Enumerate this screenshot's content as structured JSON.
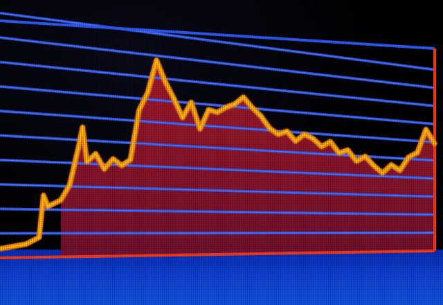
{
  "colors": {
    "grid_line": "#2f5bff",
    "grid_glow": "#5f86ff",
    "price_line": "#ff8a1a",
    "price_line_highlight": "#ffd000",
    "area_fill_top": "#b01a2a",
    "area_fill_bottom": "#7a1230",
    "frame_border": "#ff3b1a",
    "background": "#000000",
    "screen_bottom": "#1456e8"
  },
  "chart_data": {
    "type": "area",
    "title": "",
    "xlabel": "",
    "ylabel": "",
    "grid": true,
    "legend": "none",
    "x": [
      0,
      3,
      6,
      9,
      10,
      11,
      12,
      14,
      16,
      18,
      19,
      20,
      22,
      24,
      26,
      28,
      30,
      32,
      34,
      36,
      38,
      40,
      42,
      44,
      46,
      48,
      50,
      52,
      54,
      56,
      58,
      60,
      62,
      64,
      66,
      68,
      70,
      72,
      74,
      76,
      78,
      80,
      82,
      84,
      86,
      88,
      90,
      92,
      94,
      96,
      98,
      100
    ],
    "series": [
      {
        "values": [
          4,
          5,
          6,
          9,
          28,
          23,
          24,
          26,
          33,
          50,
          60,
          44,
          48,
          41,
          46,
          43,
          46,
          70,
          79,
          95,
          85,
          77,
          68,
          76,
          63,
          73,
          72,
          75,
          77,
          81,
          76,
          72,
          66,
          63,
          65,
          60,
          64,
          62,
          58,
          61,
          55,
          57,
          51,
          54,
          49,
          45,
          50,
          47,
          55,
          58,
          72,
          64
        ]
      }
    ],
    "ylim": [
      0,
      100
    ]
  }
}
